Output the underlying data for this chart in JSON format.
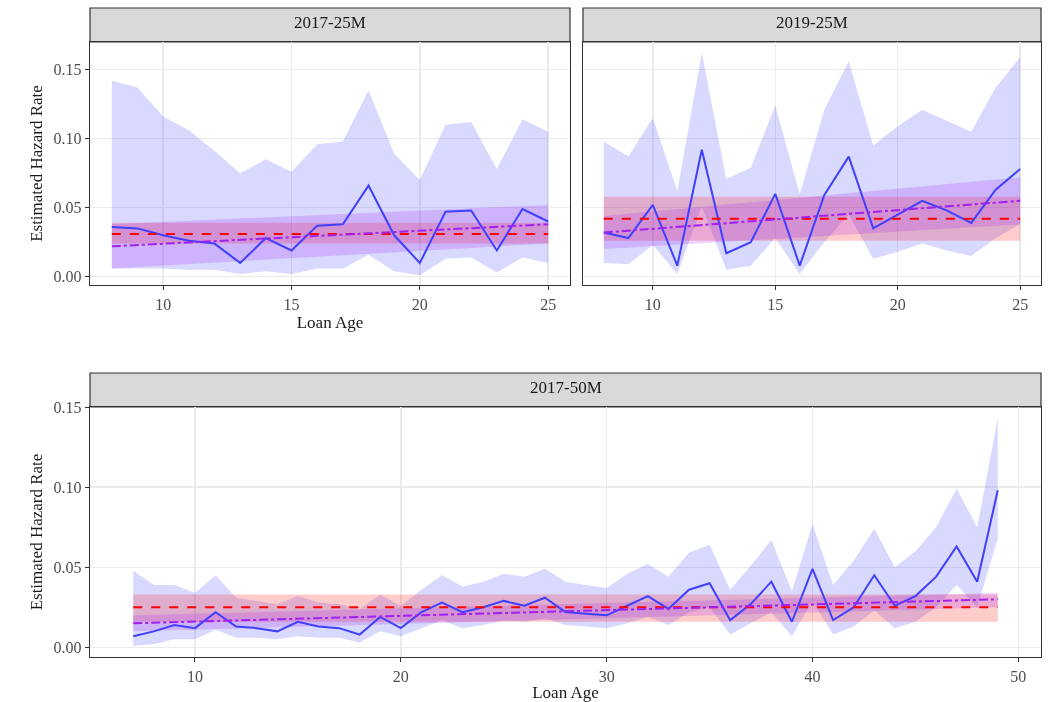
{
  "chart_data": [
    {
      "type": "line",
      "title": "2017-25M",
      "xlabel": "Loan Age",
      "ylabel": "Estimated Hazard Rate",
      "grid": true,
      "xlim": [
        7.15,
        25.85
      ],
      "xticks": [
        10,
        15,
        20,
        25
      ],
      "ylim": [
        -0.006,
        0.17
      ],
      "yticks": [
        {
          "value": 0,
          "label": "0.00"
        },
        {
          "value": 0.05,
          "label": "0.05"
        },
        {
          "value": 0.1,
          "label": "0.10"
        },
        {
          "value": 0.15,
          "label": "0.15"
        }
      ],
      "x": [
        8,
        9,
        10,
        11,
        12,
        13,
        14,
        15,
        16,
        17,
        18,
        19,
        20,
        21,
        22,
        23,
        24,
        25
      ],
      "series": [
        {
          "color": "#4040ff",
          "line_style": "solid",
          "values": [
            0.036,
            0.035,
            0.03,
            0.026,
            0.024,
            0.01,
            0.028,
            0.019,
            0.037,
            0.038,
            0.066,
            0.03,
            0.01,
            0.047,
            0.048,
            0.019,
            0.049,
            0.04
          ],
          "upper": [
            0.142,
            0.137,
            0.116,
            0.106,
            0.091,
            0.075,
            0.085,
            0.076,
            0.096,
            0.098,
            0.135,
            0.089,
            0.07,
            0.11,
            0.112,
            0.078,
            0.114,
            0.105
          ],
          "lower": [
            0.006,
            0.006,
            0.006,
            0.005,
            0.005,
            0.002,
            0.004,
            0.002,
            0.006,
            0.006,
            0.016,
            0.004,
            0.001,
            0.013,
            0.014,
            0.003,
            0.014,
            0.01
          ]
        },
        {
          "color": "#ff0000",
          "line_style": "dashed",
          "x": [
            8,
            25
          ],
          "values": [
            0.031,
            0.031
          ],
          "upper": [
            0.039,
            0.039
          ],
          "lower": [
            0.024,
            0.024
          ]
        },
        {
          "color": "#a020f0",
          "line_style": "dashdot",
          "x": [
            8,
            25
          ],
          "values": [
            0.022,
            0.038
          ],
          "upper": [
            0.038,
            0.052
          ],
          "lower": [
            0.006,
            0.024
          ]
        }
      ]
    },
    {
      "type": "line",
      "title": "2019-25M",
      "grid": true,
      "tick_labels": "x",
      "xlim": [
        7.15,
        25.85
      ],
      "xticks": [
        10,
        15,
        20,
        25
      ],
      "ylim": [
        -0.006,
        0.17
      ],
      "yticks": [
        {
          "value": 0,
          "label": null
        },
        {
          "value": 0.05,
          "label": null
        },
        {
          "value": 0.1,
          "label": null
        },
        {
          "value": 0.15,
          "label": null
        }
      ],
      "x": [
        8,
        9,
        10,
        11,
        12,
        13,
        14,
        15,
        16,
        17,
        18,
        19,
        20,
        21,
        22,
        23,
        24,
        25
      ],
      "series": [
        {
          "color": "#4040ff",
          "line_style": "solid",
          "values": [
            0.032,
            0.028,
            0.052,
            0.008,
            0.092,
            0.017,
            0.025,
            0.06,
            0.008,
            0.059,
            0.087,
            0.035,
            0.045,
            0.055,
            0.048,
            0.039,
            0.063,
            0.078
          ],
          "upper": [
            0.098,
            0.087,
            0.115,
            0.062,
            0.162,
            0.071,
            0.079,
            0.124,
            0.06,
            0.121,
            0.156,
            0.095,
            0.109,
            0.121,
            0.113,
            0.105,
            0.137,
            0.159
          ],
          "lower": [
            0.01,
            0.009,
            0.023,
            0.002,
            0.051,
            0.005,
            0.008,
            0.028,
            0.002,
            0.025,
            0.045,
            0.013,
            0.018,
            0.024,
            0.019,
            0.015,
            0.028,
            0.038
          ]
        },
        {
          "color": "#ff0000",
          "line_style": "dashed",
          "x": [
            8,
            25
          ],
          "values": [
            0.042,
            0.042
          ],
          "upper": [
            0.058,
            0.058
          ],
          "lower": [
            0.026,
            0.026
          ]
        },
        {
          "color": "#a020f0",
          "line_style": "dashdot",
          "x": [
            8,
            25
          ],
          "values": [
            0.032,
            0.055
          ],
          "upper": [
            0.044,
            0.072
          ],
          "lower": [
            0.02,
            0.038
          ]
        }
      ]
    },
    {
      "type": "line",
      "title": "2017-50M",
      "xlabel": "Loan Age",
      "ylabel": "Estimated Hazard Rate",
      "grid": true,
      "xlim": [
        4.9,
        51.1
      ],
      "xticks": [
        10,
        20,
        30,
        40,
        50
      ],
      "ylim": [
        -0.006,
        0.15
      ],
      "yticks": [
        {
          "value": 0,
          "label": "0.00"
        },
        {
          "value": 0.05,
          "label": "0.05"
        },
        {
          "value": 0.1,
          "label": "0.10"
        },
        {
          "value": 0.15,
          "label": "0.15"
        }
      ],
      "x": [
        7,
        8,
        9,
        10,
        11,
        12,
        13,
        14,
        15,
        16,
        17,
        18,
        19,
        20,
        21,
        22,
        23,
        24,
        25,
        26,
        27,
        28,
        29,
        30,
        31,
        32,
        33,
        34,
        35,
        36,
        37,
        38,
        39,
        40,
        41,
        42,
        43,
        44,
        45,
        46,
        47,
        48,
        49
      ],
      "series": [
        {
          "color": "#4040ff",
          "line_style": "solid",
          "values": [
            0.007,
            0.01,
            0.014,
            0.012,
            0.022,
            0.013,
            0.012,
            0.01,
            0.016,
            0.013,
            0.012,
            0.008,
            0.019,
            0.012,
            0.022,
            0.028,
            0.022,
            0.025,
            0.029,
            0.026,
            0.031,
            0.022,
            0.021,
            0.02,
            0.026,
            0.032,
            0.024,
            0.036,
            0.04,
            0.017,
            0.027,
            0.041,
            0.016,
            0.049,
            0.017,
            0.025,
            0.045,
            0.026,
            0.032,
            0.044,
            0.063,
            0.041,
            0.098
          ],
          "upper": [
            0.048,
            0.039,
            0.039,
            0.034,
            0.045,
            0.031,
            0.029,
            0.027,
            0.032,
            0.028,
            0.027,
            0.024,
            0.033,
            0.026,
            0.036,
            0.045,
            0.038,
            0.041,
            0.046,
            0.044,
            0.049,
            0.041,
            0.039,
            0.037,
            0.046,
            0.052,
            0.044,
            0.059,
            0.064,
            0.036,
            0.051,
            0.067,
            0.035,
            0.077,
            0.039,
            0.054,
            0.074,
            0.05,
            0.06,
            0.075,
            0.099,
            0.075,
            0.143
          ],
          "lower": [
            0.001,
            0.002,
            0.005,
            0.005,
            0.011,
            0.006,
            0.006,
            0.005,
            0.007,
            0.006,
            0.006,
            0.003,
            0.01,
            0.007,
            0.012,
            0.017,
            0.012,
            0.014,
            0.017,
            0.016,
            0.018,
            0.014,
            0.013,
            0.012,
            0.015,
            0.019,
            0.014,
            0.022,
            0.025,
            0.008,
            0.015,
            0.022,
            0.007,
            0.029,
            0.008,
            0.013,
            0.023,
            0.012,
            0.016,
            0.025,
            0.039,
            0.025,
            0.068
          ]
        },
        {
          "color": "#ff0000",
          "line_style": "dashed",
          "x": [
            7,
            49
          ],
          "values": [
            0.025,
            0.025
          ],
          "upper": [
            0.033,
            0.033
          ],
          "lower": [
            0.016,
            0.016
          ]
        },
        {
          "color": "#a020f0",
          "line_style": "dashdot",
          "x": [
            7,
            49
          ],
          "values": [
            0.015,
            0.03
          ],
          "upper": [
            0.02,
            0.034
          ],
          "lower": [
            0.01,
            0.025
          ]
        }
      ]
    }
  ]
}
